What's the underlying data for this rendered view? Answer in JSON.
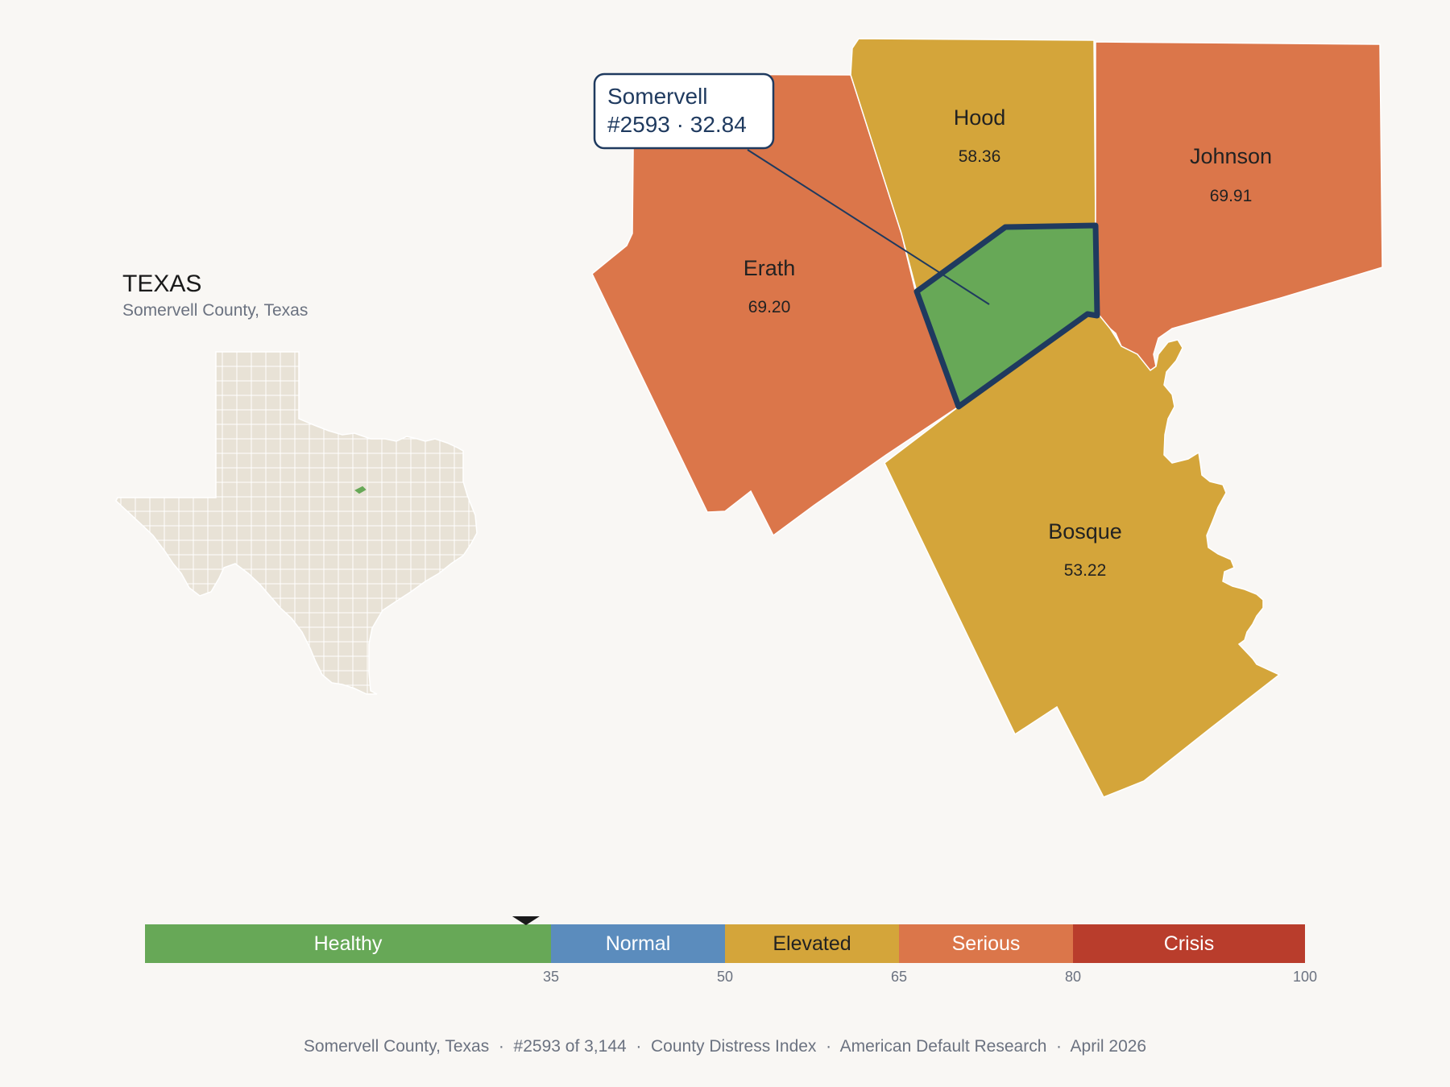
{
  "inset": {
    "state_title": "TEXAS",
    "subtitle": "Somervell County, Texas"
  },
  "counties": [
    {
      "id": "hood",
      "name": "Hood",
      "score": "58.36",
      "color": "#d4a53a"
    },
    {
      "id": "johnson",
      "name": "Johnson",
      "score": "69.91",
      "color": "#db764a"
    },
    {
      "id": "erath",
      "name": "Erath",
      "score": "69.20",
      "color": "#db764a"
    },
    {
      "id": "bosque",
      "name": "Bosque",
      "score": "53.22",
      "color": "#d4a53a"
    },
    {
      "id": "somervell",
      "name": "Somervell",
      "score": "32.84",
      "color": "#67a857",
      "highlight": true
    }
  ],
  "callout": {
    "line1": "Somervell",
    "line2": "#2593 · 32.84"
  },
  "legend": {
    "marker_value": 32.84,
    "bands": [
      {
        "label": "Healthy",
        "from": 0,
        "to": 35,
        "color": "#67a857",
        "text_color": "#ffffff"
      },
      {
        "label": "Normal",
        "from": 35,
        "to": 50,
        "color": "#5b8cbd",
        "text_color": "#ffffff"
      },
      {
        "label": "Elevated",
        "from": 50,
        "to": 65,
        "color": "#d4a53a",
        "text_color": "#222222"
      },
      {
        "label": "Serious",
        "from": 65,
        "to": 80,
        "color": "#db764a",
        "text_color": "#ffffff"
      },
      {
        "label": "Crisis",
        "from": 80,
        "to": 100,
        "color": "#b93d2c",
        "text_color": "#ffffff"
      }
    ],
    "ticks": [
      "35",
      "50",
      "65",
      "80",
      "100"
    ]
  },
  "footer": {
    "text": "Somervell County, Texas  ·  #2593 of 3,144  ·  County Distress Index  ·  American Default Research  ·  April 2026"
  },
  "colors": {
    "background": "#f9f7f4",
    "state_fill": "#e8e2d6",
    "highlight_stroke": "#1f3a5f"
  }
}
